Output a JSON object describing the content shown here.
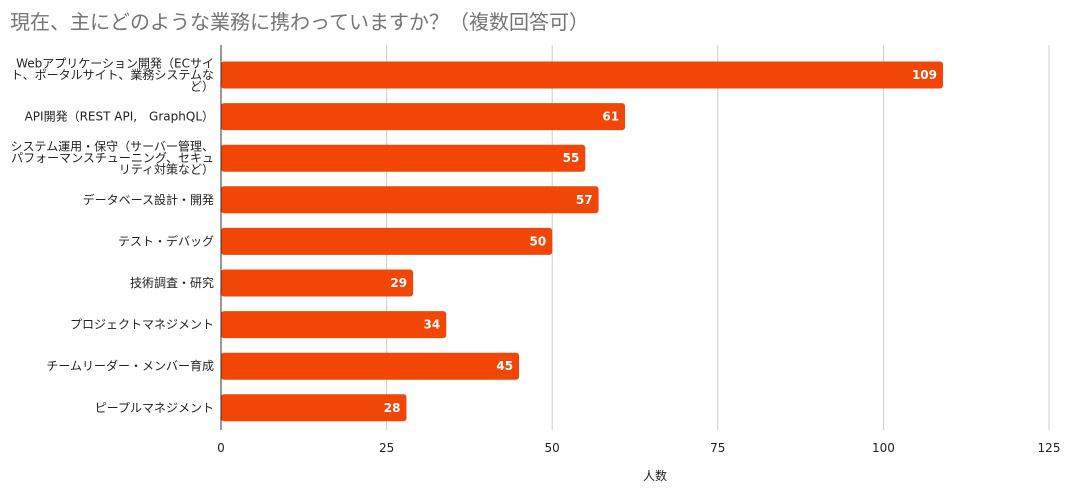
{
  "chart_data": {
    "type": "bar",
    "orientation": "horizontal",
    "title": "現在、主にどのような業務に携わっていますか？（複数回答可）",
    "xlabel": "人数",
    "ylabel": "",
    "categories": [
      "Webアプリケーション開発（ECサイト、ポータルサイト、業務システムなど）",
      "API開発（REST API, GraphQL）",
      "システム運用・保守（サーバー管理、パフォーマンスチューニング、セキュリティ対策など）",
      "データベース設計・開発",
      "テスト・デバッグ",
      "技術調査・研究",
      "プロジェクトマネジメント",
      "チームリーダー・メンバー育成",
      "ピープルマネジメント"
    ],
    "category_lines": [
      [
        "Webアプリケーション開発（ECサイ",
        "ト、ポータルサイト、業務システムな",
        "ど）"
      ],
      [
        "API開発（REST API,　GraphQL）"
      ],
      [
        "システム運用・保守（サーバー管理、",
        "パフォーマンスチューニング、セキュ",
        "リティ対策など）"
      ],
      [
        "データベース設計・開発"
      ],
      [
        "テスト・デバッグ"
      ],
      [
        "技術調査・研究"
      ],
      [
        "プロジェクトマネジメント"
      ],
      [
        "チームリーダー・メンバー育成"
      ],
      [
        "ピープルマネジメント"
      ]
    ],
    "values": [
      109,
      61,
      55,
      57,
      50,
      29,
      34,
      45,
      28
    ],
    "xlim": [
      0,
      125
    ],
    "xticks": [
      0,
      25,
      50,
      75,
      100,
      125
    ],
    "grid": true,
    "legend": "none",
    "bar_color": "#f24607"
  }
}
